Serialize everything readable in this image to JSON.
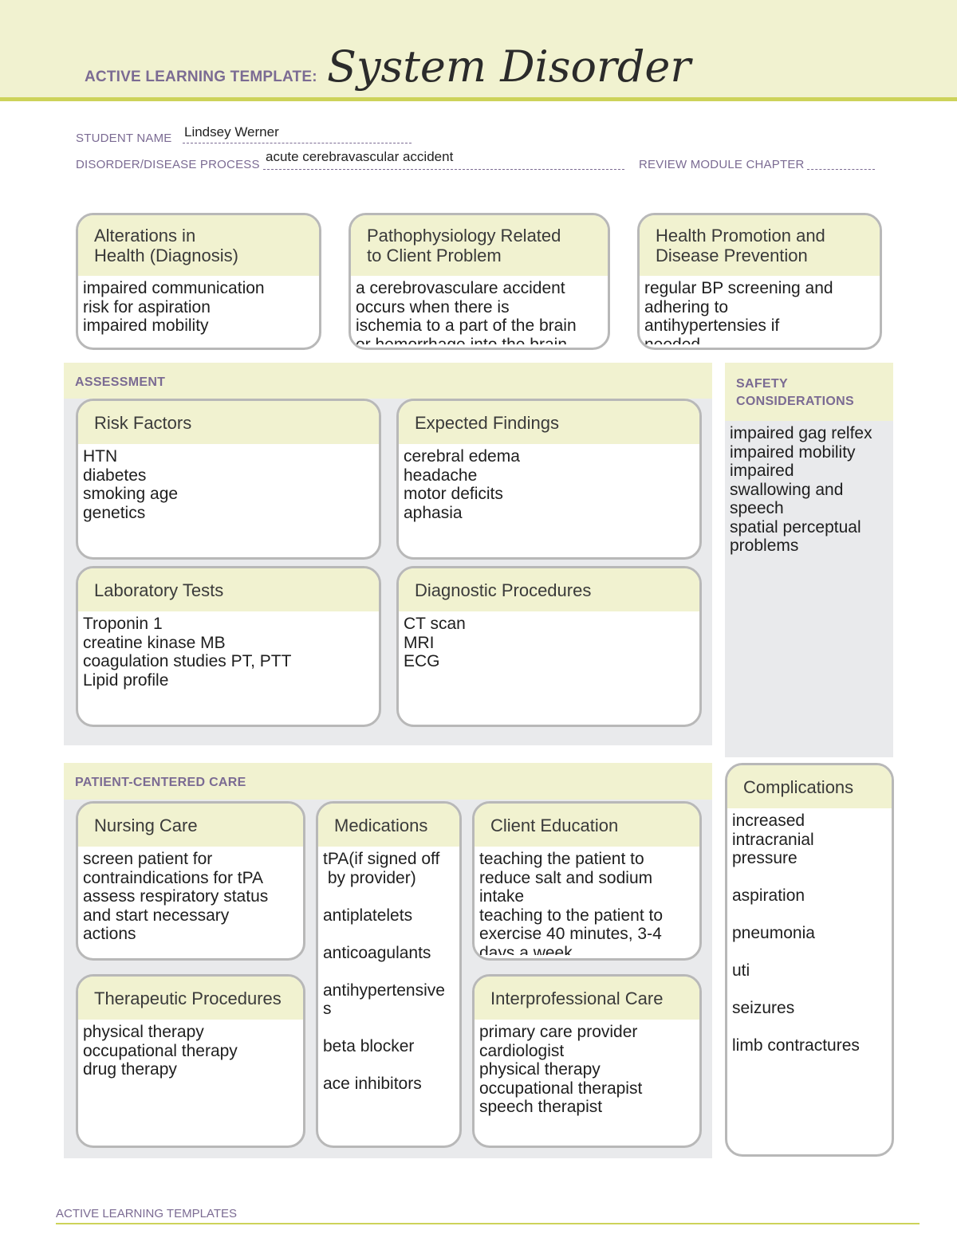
{
  "header": {
    "label": "ACTIVE LEARNING TEMPLATE:",
    "title": "System Disorder"
  },
  "fields": {
    "student_name_label": "STUDENT NAME",
    "student_name": "Lindsey Werner",
    "disorder_label": "DISORDER/DISEASE PROCESS",
    "disorder": "acute cerebravascular accident",
    "review_label": "REVIEW MODULE CHAPTER",
    "review": ""
  },
  "sections": {
    "assessment": "ASSESSMENT",
    "safety": "SAFETY\nCONSIDERATIONS",
    "pcc": "PATIENT-CENTERED CARE"
  },
  "boxes": {
    "alterations": {
      "heading": [
        "Alterations in",
        "Health (Diagnosis)"
      ],
      "lines": [
        "impaired communication",
        "risk for aspiration",
        "impaired mobility"
      ]
    },
    "pathophysiology": {
      "heading": [
        "Pathophysiology Related",
        "to Client Problem"
      ],
      "lines": [
        "a cerebrovasculare accident",
        "occurs when there is",
        "ischemia to a part of the brain",
        "or hemorrhage into the brain"
      ]
    },
    "health_promotion": {
      "heading": [
        "Health Promotion and",
        "Disease Prevention"
      ],
      "lines": [
        "regular BP screening and",
        "adhering to",
        "antihypertensies if",
        "needed"
      ]
    },
    "risk_factors": {
      "heading": [
        "Risk Factors"
      ],
      "lines": [
        "HTN",
        "diabetes",
        "smoking age",
        "genetics"
      ]
    },
    "expected_findings": {
      "heading": [
        "Expected Findings"
      ],
      "lines": [
        "cerebral edema",
        "headache",
        "motor deficits",
        "aphasia"
      ]
    },
    "laboratory_tests": {
      "heading": [
        "Laboratory Tests"
      ],
      "lines": [
        "Troponin 1",
        "creatine kinase MB",
        "coagulation studies PT, PTT",
        "Lipid profile"
      ]
    },
    "diagnostic_procedures": {
      "heading": [
        "Diagnostic Procedures"
      ],
      "lines": [
        "CT scan",
        "MRI",
        "ECG"
      ]
    },
    "safety": {
      "lines": [
        "impaired gag relfex",
        "impaired mobility",
        "impaired",
        "swallowing and",
        "speech",
        "spatial perceptual",
        "problems"
      ]
    },
    "nursing_care": {
      "heading": [
        "Nursing Care"
      ],
      "lines": [
        "screen patient for",
        "contraindications for tPA",
        "assess respiratory status",
        "and start necessary",
        "actions"
      ]
    },
    "medications": {
      "heading": [
        "Medications"
      ],
      "lines": [
        "tPA(if signed off",
        " by provider)",
        "",
        "antiplatelets",
        "",
        "anticoagulants",
        "",
        "antihypertensive",
        "s",
        "",
        "beta blocker",
        "",
        "ace inhibitors"
      ]
    },
    "client_education": {
      "heading": [
        "Client Education"
      ],
      "lines": [
        "teaching the patient to",
        "reduce salt and sodium",
        "intake",
        "teaching to the patient to",
        "exercise 40 minutes, 3-4",
        "days a week"
      ]
    },
    "therapeutic_procedures": {
      "heading": [
        "Therapeutic Procedures"
      ],
      "lines": [
        "physical therapy",
        "occupational therapy",
        "drug therapy"
      ]
    },
    "interprofessional_care": {
      "heading": [
        "Interprofessional Care"
      ],
      "lines": [
        "primary care provider",
        "cardiologist",
        "physical therapy",
        "occupational therapist",
        "speech therapist"
      ]
    },
    "complications": {
      "heading": [
        "Complications"
      ],
      "lines": [
        "increased",
        "intracranial",
        "pressure",
        "",
        "aspiration",
        "",
        "pneumonia",
        "",
        "uti",
        "",
        "seizures",
        "",
        "limb contractures"
      ]
    }
  },
  "footer": "ACTIVE LEARNING TEMPLATES"
}
